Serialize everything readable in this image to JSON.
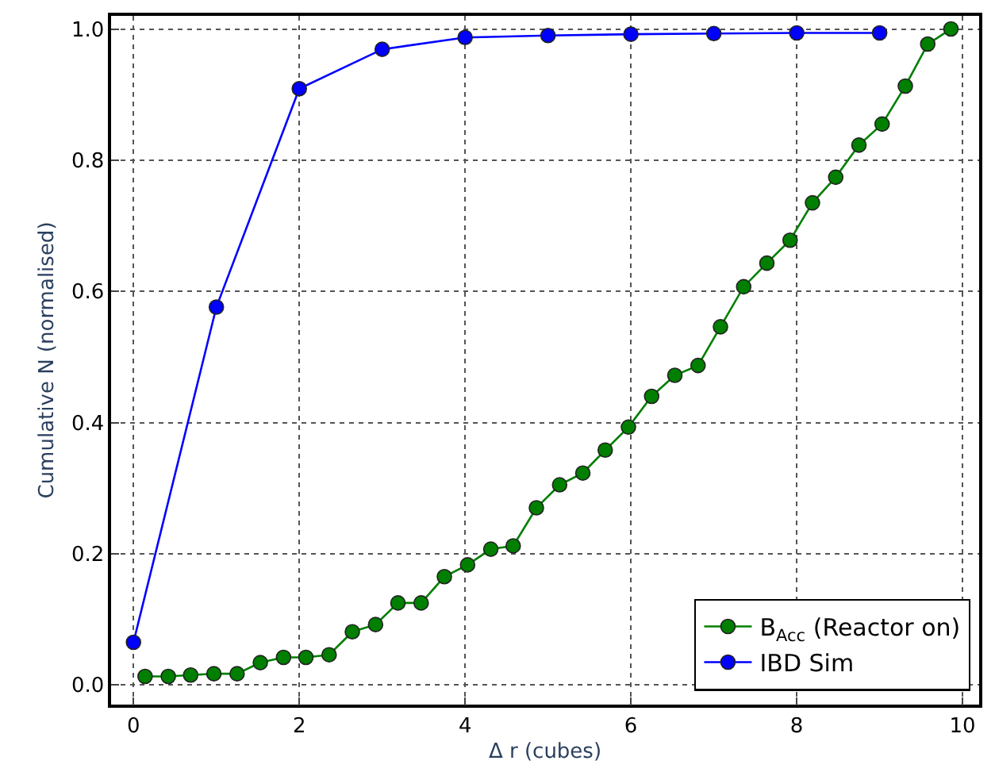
{
  "chart_data": {
    "type": "line",
    "xlabel": "Δ r (cubes)",
    "ylabel": "Cumulative N (normalised)",
    "xlim": [
      -0.27,
      10.2
    ],
    "ylim": [
      -0.03,
      1.02
    ],
    "xticks": [
      0,
      2,
      4,
      6,
      8,
      10
    ],
    "yticks": [
      {
        "value": 0,
        "label": "0.0"
      },
      {
        "value": 0.2,
        "label": "0.2"
      },
      {
        "value": 0.4,
        "label": "0.4"
      },
      {
        "value": 0.6,
        "label": "0.6"
      },
      {
        "value": 0.8,
        "label": "0.8"
      },
      {
        "value": 1.0,
        "label": "1.0"
      }
    ],
    "grid": true,
    "legend": "bottom right",
    "marker": "circle",
    "line_style": "solid",
    "series": [
      {
        "name": "B$_{Acc}$ (Reactor on)",
        "color": "#007f00",
        "x": [
          0.14,
          0.42,
          0.69,
          0.97,
          1.25,
          1.53,
          1.81,
          2.08,
          2.36,
          2.64,
          2.92,
          3.19,
          3.47,
          3.75,
          4.03,
          4.31,
          4.58,
          4.86,
          5.14,
          5.42,
          5.69,
          5.97,
          6.25,
          6.53,
          6.81,
          7.08,
          7.36,
          7.64,
          7.92,
          8.19,
          8.47,
          8.75,
          9.03,
          9.31,
          9.58,
          9.86
        ],
        "values": [
          0.013,
          0.013,
          0.015,
          0.017,
          0.017,
          0.034,
          0.042,
          0.042,
          0.046,
          0.081,
          0.092,
          0.125,
          0.125,
          0.165,
          0.183,
          0.207,
          0.212,
          0.27,
          0.305,
          0.323,
          0.358,
          0.393,
          0.44,
          0.472,
          0.487,
          0.546,
          0.607,
          0.643,
          0.678,
          0.735,
          0.774,
          0.823,
          0.855,
          0.913,
          0.977,
          1.0
        ]
      },
      {
        "name": "IBD Sim",
        "color": "#0000ff",
        "x": [
          0,
          1,
          2,
          3,
          4,
          5,
          6,
          7,
          8,
          9
        ],
        "values": [
          0.065,
          0.576,
          0.909,
          0.969,
          0.987,
          0.99,
          0.992,
          0.993,
          0.994,
          0.994
        ]
      }
    ]
  }
}
